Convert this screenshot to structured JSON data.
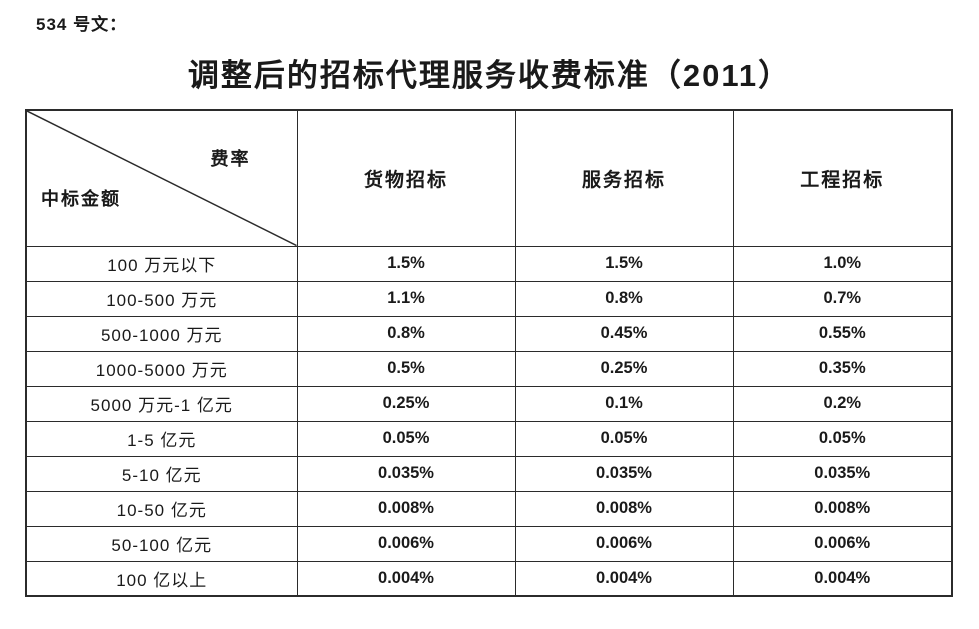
{
  "document": {
    "doc_label": "534 号文：",
    "title": "调整后的招标代理服务收费标准（2011）"
  },
  "table": {
    "corner": {
      "axis_top_right": "费率",
      "axis_bottom_left": "中标金额"
    },
    "columns": [
      "货物招标",
      "服务招标",
      "工程招标"
    ],
    "rows": [
      {
        "label": "100 万元以下",
        "values": [
          "1.5%",
          "1.5%",
          "1.0%"
        ]
      },
      {
        "label": "100-500 万元",
        "values": [
          "1.1%",
          "0.8%",
          "0.7%"
        ]
      },
      {
        "label": "500-1000 万元",
        "values": [
          "0.8%",
          "0.45%",
          "0.55%"
        ]
      },
      {
        "label": "1000-5000 万元",
        "values": [
          "0.5%",
          "0.25%",
          "0.35%"
        ]
      },
      {
        "label": "5000 万元-1 亿元",
        "values": [
          "0.25%",
          "0.1%",
          "0.2%"
        ]
      },
      {
        "label": "1-5 亿元",
        "values": [
          "0.05%",
          "0.05%",
          "0.05%"
        ]
      },
      {
        "label": "5-10 亿元",
        "values": [
          "0.035%",
          "0.035%",
          "0.035%"
        ]
      },
      {
        "label": "10-50 亿元",
        "values": [
          "0.008%",
          "0.008%",
          "0.008%"
        ]
      },
      {
        "label": "50-100 亿元",
        "values": [
          "0.006%",
          "0.006%",
          "0.006%"
        ]
      },
      {
        "label": "100 亿以上",
        "values": [
          "0.004%",
          "0.004%",
          "0.004%"
        ]
      }
    ]
  },
  "colors": {
    "background": "#ffffff",
    "text": "#1a1a1a",
    "border": "#2b2b2b"
  }
}
